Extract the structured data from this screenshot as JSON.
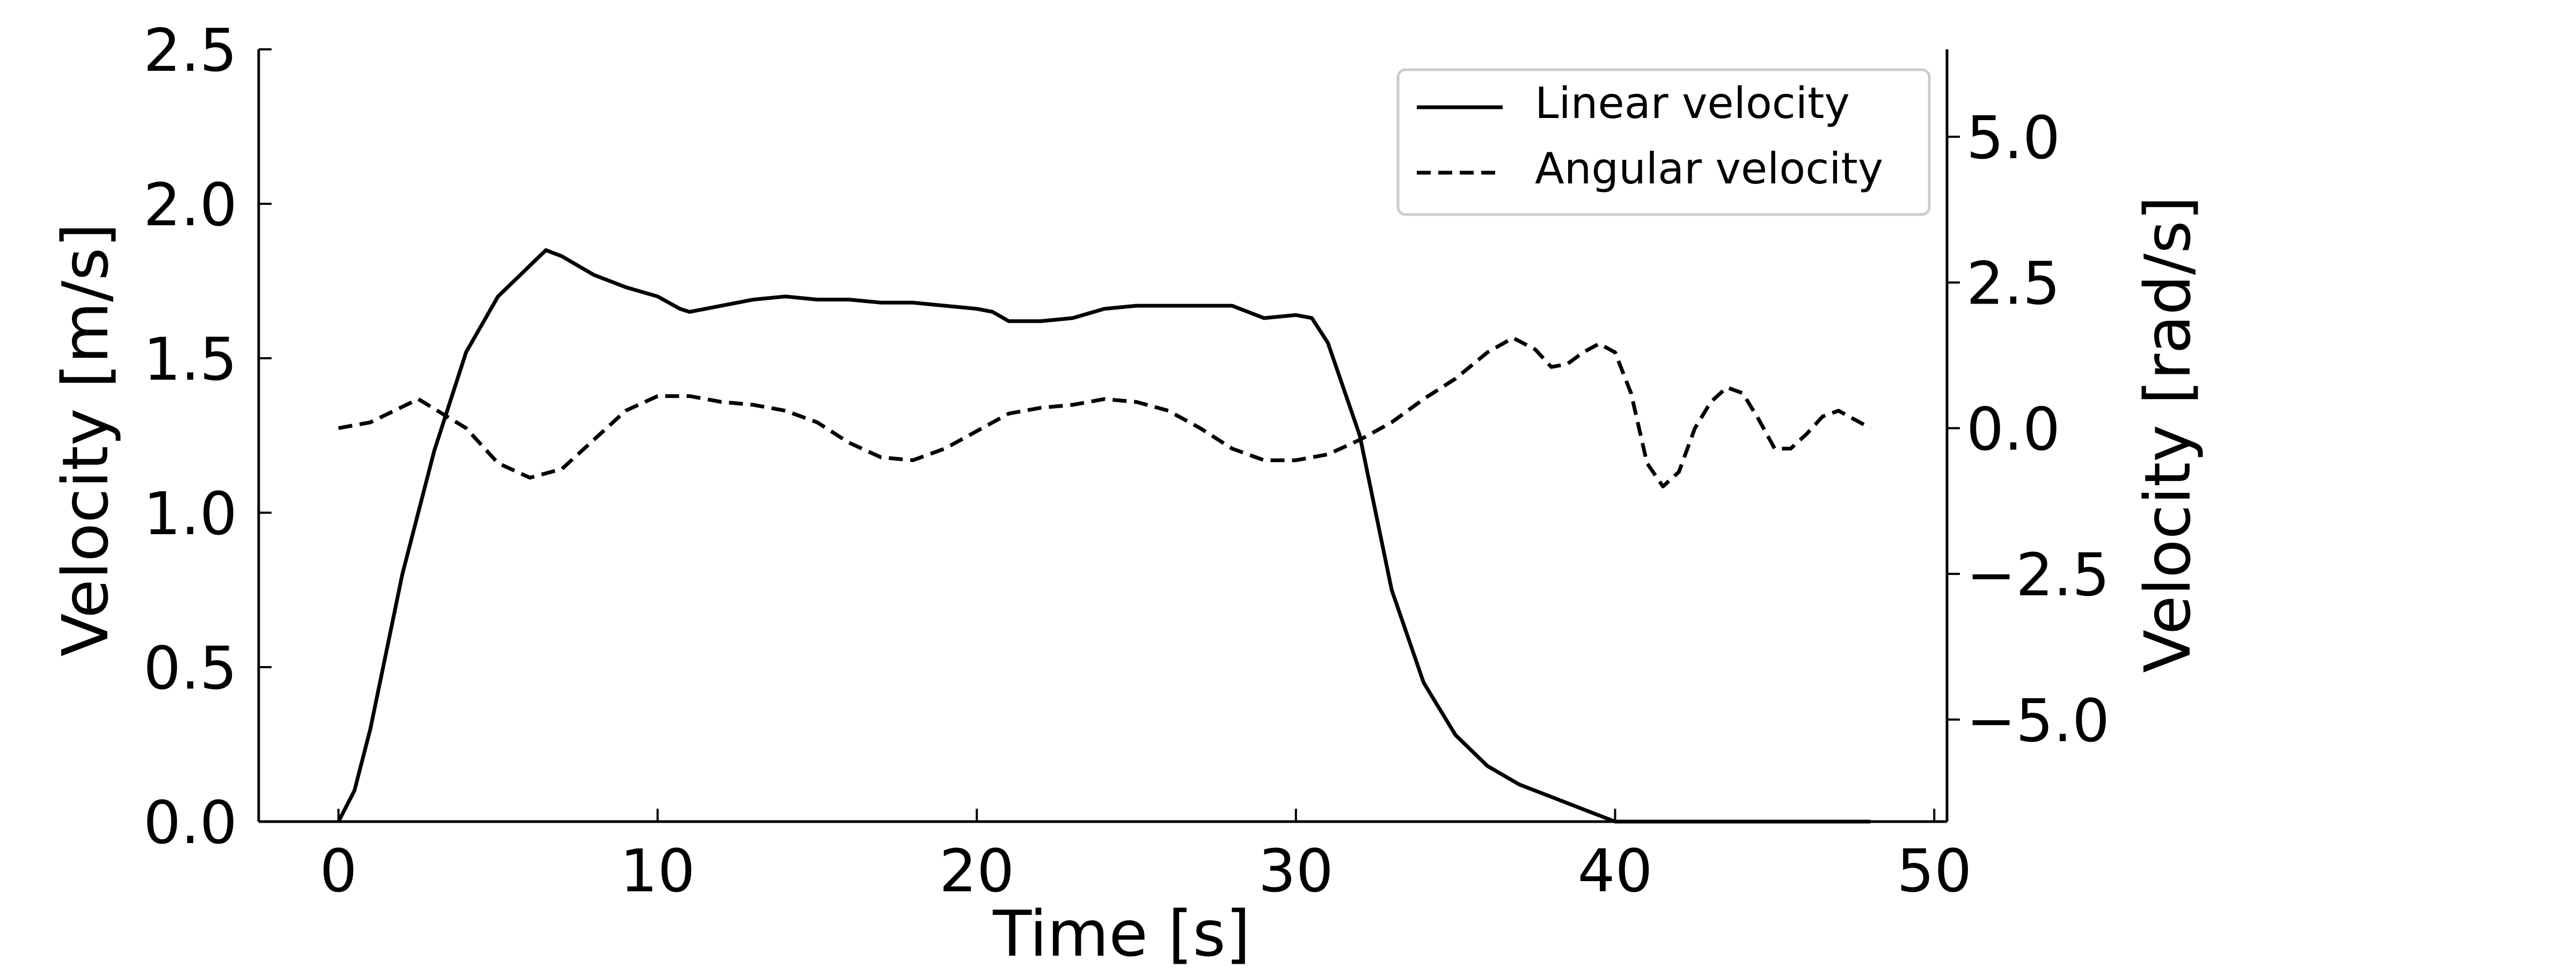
{
  "chart_data": {
    "type": "line",
    "xlabel": "Time [s]",
    "ylabel_left": "Velocity [m/s]",
    "ylabel_right": "Velocity [rad/s]",
    "xlim": [
      -2.5,
      50.4
    ],
    "ylim_left": [
      0,
      2.5
    ],
    "ylim_right": [
      -6.75,
      6.5
    ],
    "x_ticks": [
      0,
      10,
      20,
      30,
      40,
      50
    ],
    "x_tick_labels": [
      "0",
      "10",
      "20",
      "30",
      "40",
      "50"
    ],
    "y_left_ticks": [
      0.0,
      0.5,
      1.0,
      1.5,
      2.0,
      2.5
    ],
    "y_left_tick_labels": [
      "0.0",
      "0.5",
      "1.0",
      "1.5",
      "2.0",
      "2.5"
    ],
    "y_right_ticks": [
      -5.0,
      -2.5,
      0.0,
      2.5,
      5.0
    ],
    "y_right_tick_labels": [
      "−5.0",
      "−2.5",
      "0.0",
      "2.5",
      "5.0"
    ],
    "grid": false,
    "legend": {
      "position": "top-right",
      "entries": [
        {
          "name": "Linear velocity",
          "style": "solid"
        },
        {
          "name": "Angular velocity",
          "style": "dashed"
        }
      ]
    },
    "series": [
      {
        "name": "Linear velocity",
        "axis": "left",
        "color": "#000000",
        "dash": "solid",
        "points": [
          [
            0,
            0.0
          ],
          [
            0.5,
            0.1
          ],
          [
            1,
            0.3
          ],
          [
            1.5,
            0.55
          ],
          [
            2,
            0.8
          ],
          [
            3,
            1.2
          ],
          [
            4,
            1.52
          ],
          [
            5,
            1.7
          ],
          [
            6,
            1.8
          ],
          [
            6.5,
            1.85
          ],
          [
            7,
            1.83
          ],
          [
            8,
            1.77
          ],
          [
            9,
            1.73
          ],
          [
            10,
            1.7
          ],
          [
            10.7,
            1.66
          ],
          [
            11,
            1.65
          ],
          [
            12,
            1.67
          ],
          [
            13,
            1.69
          ],
          [
            14,
            1.7
          ],
          [
            15,
            1.69
          ],
          [
            16,
            1.69
          ],
          [
            17,
            1.68
          ],
          [
            18,
            1.68
          ],
          [
            19,
            1.67
          ],
          [
            20,
            1.66
          ],
          [
            20.5,
            1.65
          ],
          [
            21,
            1.62
          ],
          [
            22,
            1.62
          ],
          [
            23,
            1.63
          ],
          [
            24,
            1.66
          ],
          [
            25,
            1.67
          ],
          [
            26,
            1.67
          ],
          [
            27,
            1.67
          ],
          [
            28,
            1.67
          ],
          [
            29,
            1.63
          ],
          [
            30,
            1.64
          ],
          [
            30.5,
            1.63
          ],
          [
            31,
            1.55
          ],
          [
            32,
            1.25
          ],
          [
            33,
            0.75
          ],
          [
            34,
            0.45
          ],
          [
            35,
            0.28
          ],
          [
            36,
            0.18
          ],
          [
            37,
            0.12
          ],
          [
            38,
            0.08
          ],
          [
            39,
            0.04
          ],
          [
            39.5,
            0.02
          ],
          [
            40,
            0.0
          ],
          [
            48,
            0.0
          ]
        ]
      },
      {
        "name": "Angular velocity",
        "axis": "right",
        "color": "#000000",
        "dash": "dashed",
        "points": [
          [
            0,
            0.0
          ],
          [
            1,
            0.1
          ],
          [
            2.5,
            0.5
          ],
          [
            4,
            0.0
          ],
          [
            5,
            -0.6
          ],
          [
            6,
            -0.85
          ],
          [
            7,
            -0.7
          ],
          [
            8,
            -0.2
          ],
          [
            9,
            0.3
          ],
          [
            10,
            0.55
          ],
          [
            11,
            0.55
          ],
          [
            12,
            0.45
          ],
          [
            13,
            0.4
          ],
          [
            14,
            0.3
          ],
          [
            15,
            0.1
          ],
          [
            16,
            -0.25
          ],
          [
            17,
            -0.5
          ],
          [
            18,
            -0.55
          ],
          [
            19,
            -0.35
          ],
          [
            20,
            -0.05
          ],
          [
            21,
            0.25
          ],
          [
            22,
            0.35
          ],
          [
            23,
            0.4
          ],
          [
            24,
            0.5
          ],
          [
            25,
            0.45
          ],
          [
            26,
            0.3
          ],
          [
            27,
            0.0
          ],
          [
            28,
            -0.35
          ],
          [
            29,
            -0.55
          ],
          [
            30,
            -0.55
          ],
          [
            31,
            -0.45
          ],
          [
            32,
            -0.2
          ],
          [
            33,
            0.1
          ],
          [
            34,
            0.5
          ],
          [
            35,
            0.85
          ],
          [
            36,
            1.3
          ],
          [
            36.8,
            1.55
          ],
          [
            37.5,
            1.35
          ],
          [
            38,
            1.05
          ],
          [
            38.5,
            1.1
          ],
          [
            39,
            1.3
          ],
          [
            39.5,
            1.45
          ],
          [
            40,
            1.3
          ],
          [
            40.5,
            0.6
          ],
          [
            41,
            -0.6
          ],
          [
            41.5,
            -1.0
          ],
          [
            42,
            -0.75
          ],
          [
            42.5,
            0.0
          ],
          [
            43,
            0.45
          ],
          [
            43.5,
            0.7
          ],
          [
            44,
            0.6
          ],
          [
            44.5,
            0.15
          ],
          [
            45,
            -0.35
          ],
          [
            45.5,
            -0.35
          ],
          [
            46,
            -0.1
          ],
          [
            46.5,
            0.2
          ],
          [
            47,
            0.3
          ],
          [
            47.5,
            0.15
          ],
          [
            48,
            0.0
          ]
        ]
      }
    ]
  }
}
